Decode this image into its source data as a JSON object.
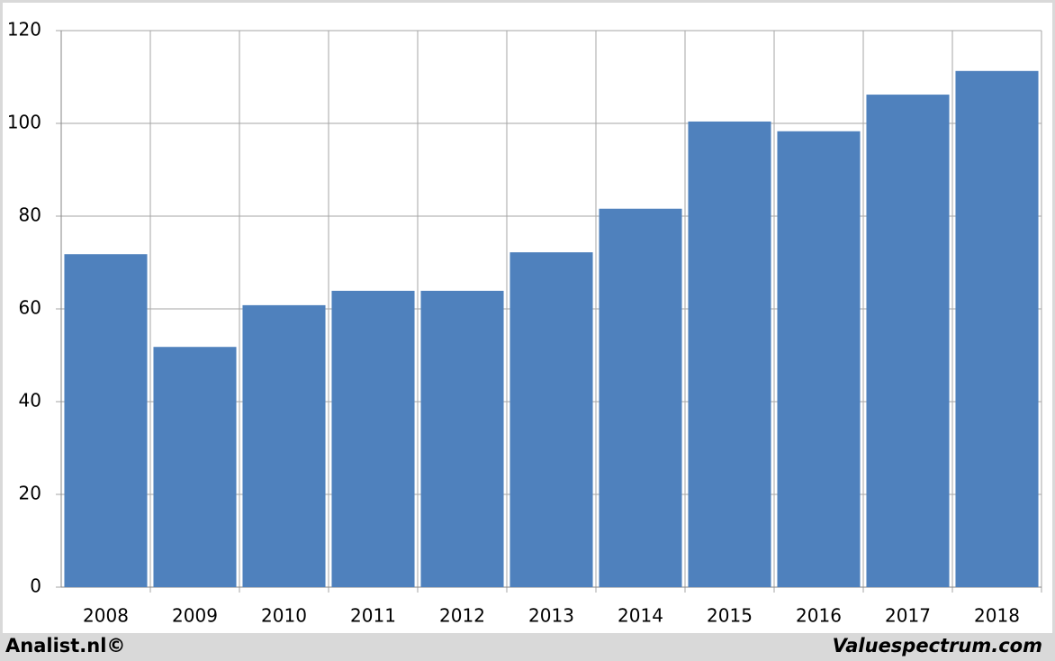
{
  "chart_data": {
    "type": "bar",
    "categories": [
      "2008",
      "2009",
      "2010",
      "2011",
      "2012",
      "2013",
      "2014",
      "2015",
      "2016",
      "2017",
      "2018"
    ],
    "values": [
      71.8,
      51.8,
      60.8,
      63.9,
      63.9,
      72.2,
      81.6,
      100.4,
      98.3,
      106.2,
      111.3
    ],
    "color": "#4f81bd",
    "ylim": [
      0,
      120
    ],
    "yticks": [
      0,
      20,
      40,
      60,
      80,
      100,
      120
    ],
    "grid": true,
    "source_left": "Analist.nl©",
    "source_right": "Valuespectrum.com"
  }
}
